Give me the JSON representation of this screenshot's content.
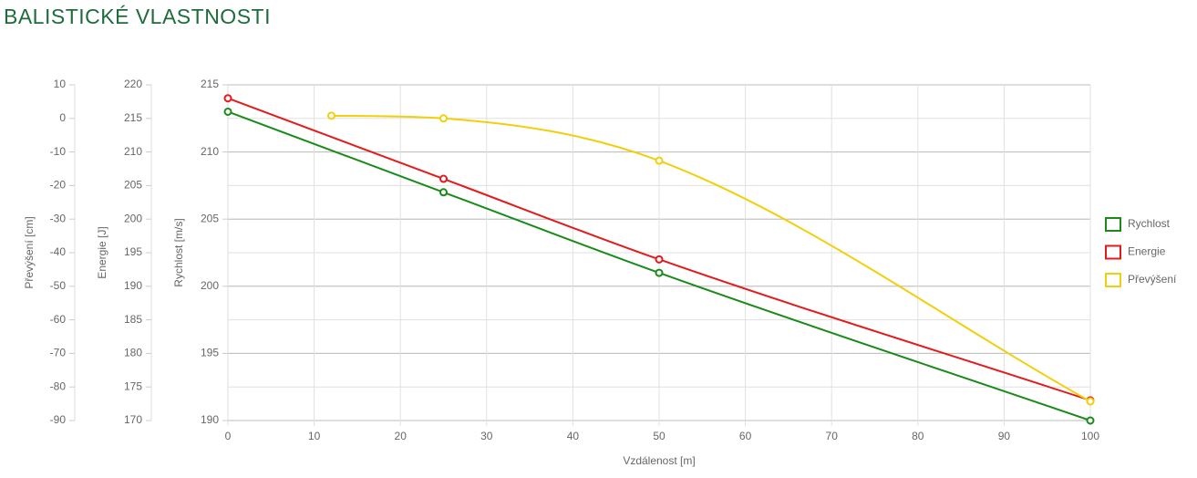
{
  "chart_data": {
    "type": "line",
    "title": "BALISTICKÉ VLASTNOSTI",
    "x_label": "Vzdálenost [m]",
    "y_label": "Rychlost [m/s]",
    "y2_label": "Energie [J]",
    "y3_label": "Převýšení [cm]",
    "xlim": [
      0,
      100
    ],
    "xticks": [
      0,
      10,
      20,
      30,
      40,
      50,
      60,
      70,
      80,
      90,
      100
    ],
    "ylim": [
      190,
      215
    ],
    "yticks": [
      190,
      195,
      200,
      205,
      210,
      215
    ],
    "y2lim": [
      170,
      220
    ],
    "y2ticks": [
      170,
      175,
      180,
      185,
      190,
      195,
      200,
      205,
      210,
      215,
      220
    ],
    "y3lim": [
      -90,
      10
    ],
    "y3ticks": [
      -90,
      -80,
      -70,
      -60,
      -50,
      -40,
      -30,
      -20,
      -10,
      0,
      10
    ],
    "grid": true,
    "series": [
      {
        "name": "Rychlost",
        "color": "#1a8a1a",
        "axis": "y",
        "x": [
          0,
          25,
          50,
          100
        ],
        "values": [
          213,
          207,
          201,
          190
        ]
      },
      {
        "name": "Energie",
        "color": "#e31b1b",
        "axis": "y2",
        "x": [
          0,
          25,
          50,
          100
        ],
        "values": [
          218,
          206,
          194,
          173
        ]
      },
      {
        "name": "Převýšení",
        "color": "#f2cf0d",
        "axis": "y3",
        "x": [
          12,
          25,
          50,
          100
        ],
        "values": [
          0.8,
          0,
          -12.6,
          -84.3
        ]
      }
    ]
  }
}
